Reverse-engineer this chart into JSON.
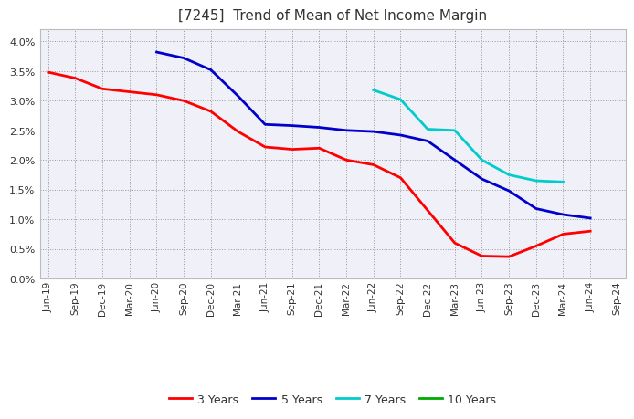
{
  "title": "[7245]  Trend of Mean of Net Income Margin",
  "title_fontsize": 11,
  "background_color": "#ffffff",
  "plot_bg_color": "#f0f0f8",
  "grid_color": "#aaaaaa",
  "ylim": [
    0.0,
    0.042
  ],
  "yticks": [
    0.0,
    0.005,
    0.01,
    0.015,
    0.02,
    0.025,
    0.03,
    0.035,
    0.04
  ],
  "x_labels": [
    "Jun-19",
    "Sep-19",
    "Dec-19",
    "Mar-20",
    "Jun-20",
    "Sep-20",
    "Dec-20",
    "Mar-21",
    "Jun-21",
    "Sep-21",
    "Dec-21",
    "Mar-22",
    "Jun-22",
    "Sep-22",
    "Dec-22",
    "Mar-23",
    "Jun-23",
    "Sep-23",
    "Dec-23",
    "Mar-24",
    "Jun-24",
    "Sep-24"
  ],
  "series": {
    "3 Years": {
      "color": "#ff0000",
      "linewidth": 2.0,
      "values": [
        0.0348,
        0.0338,
        0.032,
        0.0315,
        0.031,
        0.03,
        0.0282,
        0.0248,
        0.0222,
        0.0218,
        0.022,
        0.02,
        0.0192,
        0.017,
        0.0115,
        0.006,
        0.0038,
        0.0037,
        0.0055,
        0.0075,
        0.008,
        null
      ]
    },
    "5 Years": {
      "color": "#0000cc",
      "linewidth": 2.0,
      "values": [
        null,
        null,
        null,
        null,
        0.0382,
        0.0372,
        0.0352,
        0.0308,
        0.026,
        0.0258,
        0.0255,
        0.025,
        0.0248,
        0.0242,
        0.0232,
        0.02,
        0.0168,
        0.0148,
        0.0118,
        0.0108,
        0.0102,
        null
      ]
    },
    "7 Years": {
      "color": "#00cccc",
      "linewidth": 2.0,
      "values": [
        null,
        null,
        null,
        null,
        null,
        null,
        null,
        null,
        null,
        null,
        null,
        null,
        0.0318,
        0.0302,
        0.0252,
        0.025,
        0.02,
        0.0175,
        0.0165,
        0.0163,
        null,
        null
      ]
    },
    "10 Years": {
      "color": "#00aa00",
      "linewidth": 2.0,
      "values": [
        null,
        null,
        null,
        null,
        null,
        null,
        null,
        null,
        null,
        null,
        null,
        null,
        null,
        null,
        null,
        null,
        null,
        null,
        null,
        null,
        null,
        null
      ]
    }
  },
  "series_order": [
    "3 Years",
    "5 Years",
    "7 Years",
    "10 Years"
  ]
}
